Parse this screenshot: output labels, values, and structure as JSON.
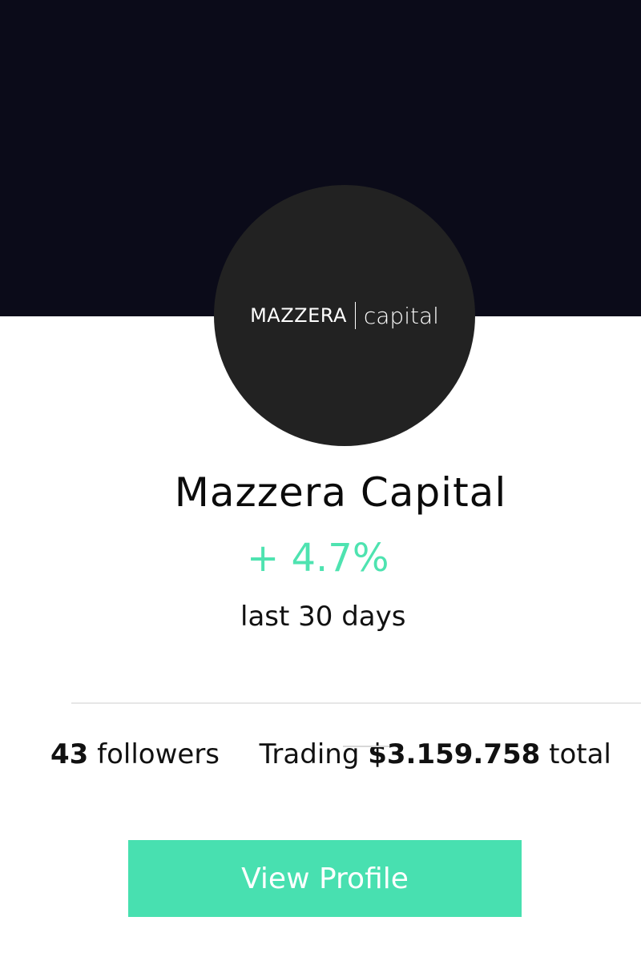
{
  "profile": {
    "logo_word": "MAZZERA",
    "logo_sub": "capital",
    "name": "Mazzera Capital",
    "change": "+ 4.7%",
    "period": "last 30 days"
  },
  "stats": {
    "followers_count": "43",
    "followers_label": "followers",
    "trading_label": "Trading",
    "trading_amount": "$3.159.758",
    "total_label": "total"
  },
  "actions": {
    "view_profile_label": "View Profile"
  },
  "colors": {
    "banner": "#0b0b19",
    "accent": "#48e0b0",
    "gain": "#4ee3b0"
  }
}
